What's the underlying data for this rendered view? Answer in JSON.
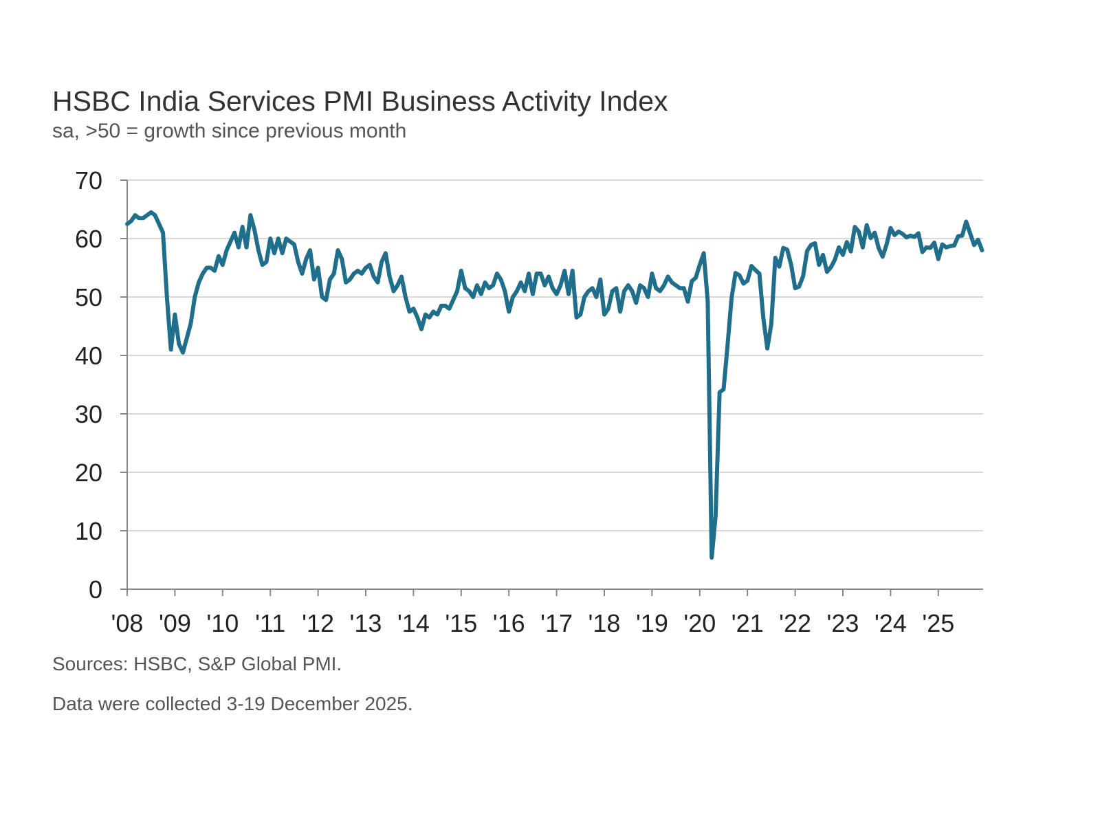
{
  "chart_data": {
    "type": "line",
    "title": "HSBC India Services PMI Business Activity Index",
    "subtitle": "sa, >50 = growth since previous month",
    "xlabel": "",
    "ylabel": "",
    "ylim": [
      0,
      70
    ],
    "yticks": [
      "0",
      "10",
      "20",
      "30",
      "40",
      "50",
      "60",
      "70"
    ],
    "xticks": [
      "'08",
      "'09",
      "'10",
      "'11",
      "'12",
      "'13",
      "'14",
      "'15",
      "'16",
      "'17",
      "'18",
      "'19",
      "'20",
      "'21",
      "'22",
      "'23",
      "'24",
      "'25"
    ],
    "x_start": "2008-01",
    "x_end": "2025-12",
    "frequency": "monthly",
    "grid": "horizontal",
    "line_color": "#1f6e8c",
    "series": [
      {
        "values": [
          62.5,
          63,
          64,
          63.5,
          63.5,
          64,
          64.5,
          64,
          62.5,
          61,
          50,
          41,
          47,
          42,
          40.5,
          43,
          45.5,
          50,
          52.5,
          54,
          55,
          55,
          54.5,
          57,
          55.5,
          58,
          59.5,
          61,
          58.5,
          62,
          58.5,
          64,
          61.5,
          58,
          55.5,
          56,
          60,
          57.5,
          60,
          57.5,
          60,
          59.5,
          59,
          56,
          54,
          56.5,
          58,
          53,
          55,
          50,
          49.5,
          53,
          54,
          58,
          56.5,
          52.5,
          53,
          54,
          54.5,
          54,
          55,
          55.5,
          53.5,
          52.5,
          56,
          57.5,
          53.5,
          51,
          52,
          53.5,
          50,
          47.5,
          48,
          46.5,
          44.5,
          47,
          46.5,
          47.5,
          47,
          48.5,
          48.5,
          48,
          49.5,
          51,
          54.5,
          51.5,
          51,
          50,
          52,
          50.5,
          52.5,
          51.5,
          52,
          54,
          53,
          51,
          47.5,
          50,
          51,
          52.5,
          51,
          54,
          50.5,
          54,
          54,
          52,
          53.5,
          51.5,
          50.5,
          52,
          54.5,
          50.5,
          54.5,
          46.5,
          47,
          50,
          51,
          51.5,
          50,
          53,
          47,
          48,
          51,
          51.5,
          47.5,
          51,
          52,
          51,
          49,
          52,
          51.5,
          50,
          54,
          51.5,
          51,
          52,
          53.5,
          52.5,
          52,
          51.5,
          51.5,
          49.2,
          52.7,
          53.3,
          55.5,
          57.5,
          49.3,
          5.4,
          12.6,
          33.7,
          34.2,
          41.8,
          49.8,
          54.1,
          53.7,
          52.3,
          52.8,
          55.3,
          54.6,
          54.0,
          46.4,
          41.2,
          45.4,
          56.7,
          55.2,
          58.4,
          58.1,
          55.5,
          51.5,
          51.8,
          53.6,
          57.9,
          58.9,
          59.2,
          55.5,
          57.2,
          54.3,
          55.1,
          56.4,
          58.5,
          57.2,
          59.4,
          57.8,
          62.0,
          61.2,
          58.5,
          62.3,
          60.1,
          61.0,
          58.4,
          56.9,
          59.0,
          61.8,
          60.6,
          61.2,
          60.8,
          60.2,
          60.5,
          60.3,
          60.9,
          57.7,
          58.5,
          58.4,
          59.3,
          56.5,
          59.0,
          58.5,
          58.7,
          58.8,
          60.4,
          60.5,
          62.9,
          60.9,
          58.9,
          59.8,
          58.0
        ]
      }
    ]
  },
  "footer": {
    "sources": "Sources: HSBC, S&P Global PMI.",
    "collected": "Data were collected 3-19 December 2025."
  }
}
